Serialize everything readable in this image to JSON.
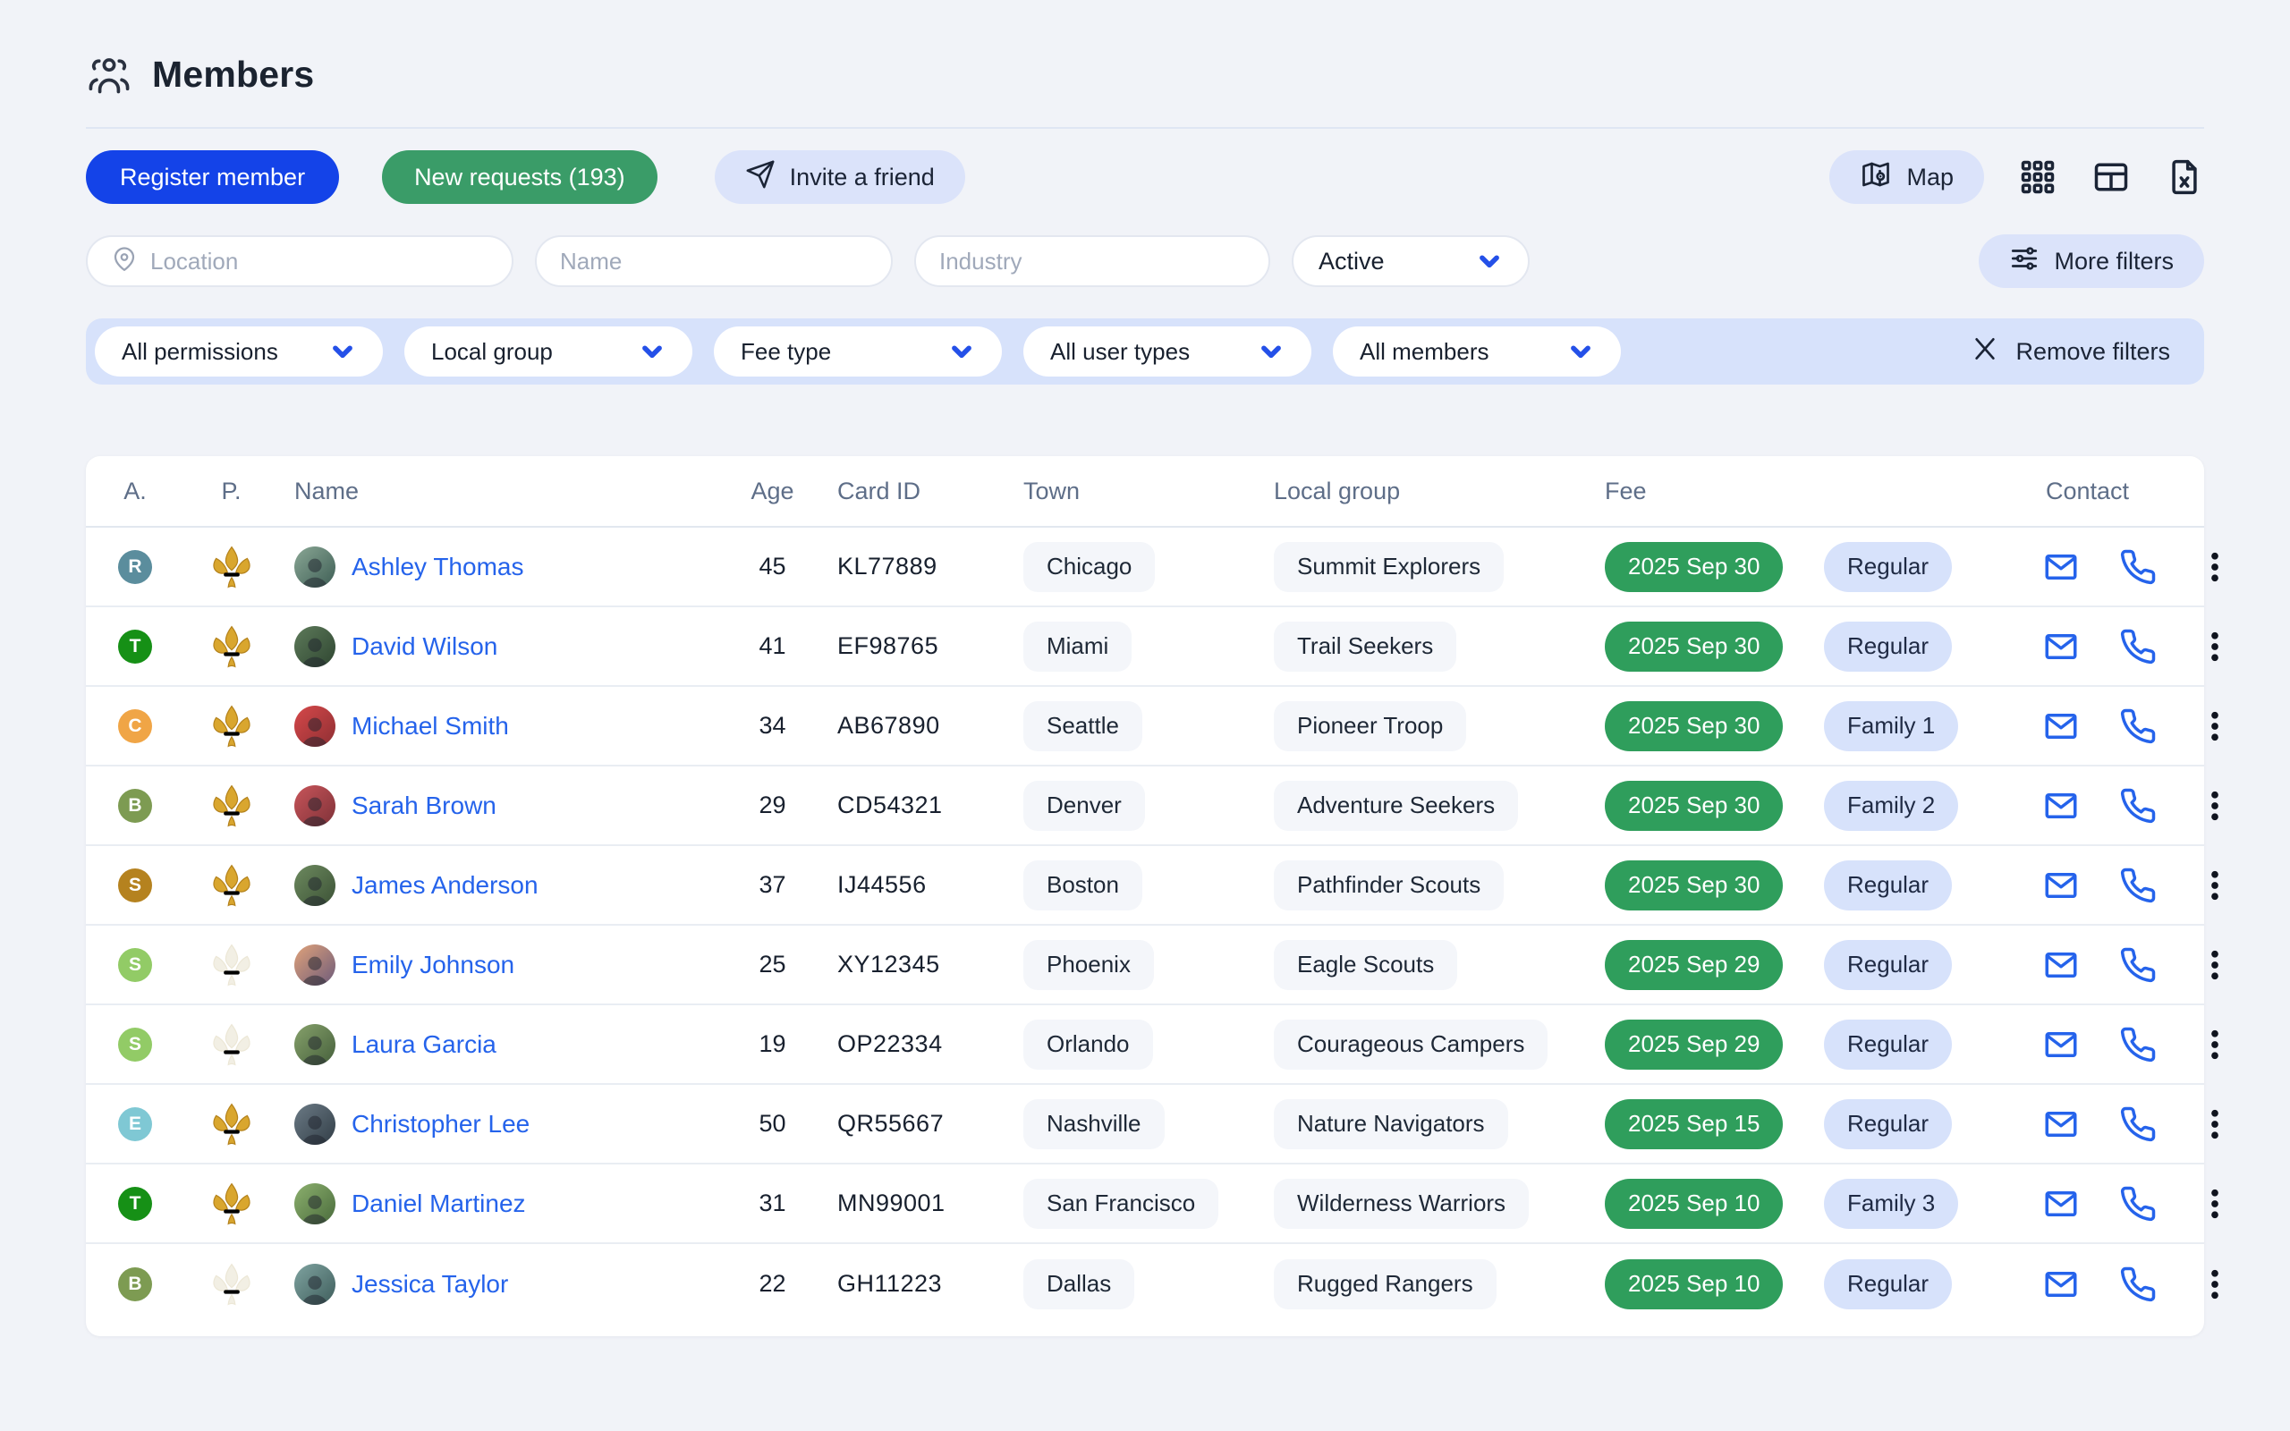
{
  "page": {
    "title": "Members"
  },
  "toolbar": {
    "register_label": "Register member",
    "new_requests_label": "New requests (193)",
    "invite_label": "Invite a friend",
    "map_label": "Map"
  },
  "filters": {
    "location_placeholder": "Location",
    "name_placeholder": "Name",
    "industry_placeholder": "Industry",
    "status_value": "Active",
    "more_filters_label": "More filters",
    "dropdowns": [
      "All permissions",
      "Local group",
      "Fee type",
      "All user types",
      "All members"
    ],
    "remove_filters_label": "Remove filters"
  },
  "colors": {
    "primary_blue": "#1443e8",
    "green_button": "#3a9c68",
    "fee_green": "#2f9e5c",
    "soft_lavender": "#dbe3fa",
    "band_blue": "#d7e2fb",
    "link_blue": "#2563eb",
    "gold_fleur": "#d9a62e"
  },
  "table": {
    "columns": [
      "A.",
      "P.",
      "Name",
      "Age",
      "Card ID",
      "Town",
      "Local group",
      "Fee",
      "Contact"
    ],
    "rows": [
      {
        "badge": "R",
        "badge_color": "#5b8d9d",
        "fleur": "gold",
        "name": "Ashley Thomas",
        "age": "45",
        "card_id": "KL77889",
        "town": "Chicago",
        "local_group": "Summit Explorers",
        "fee_date": "2025 Sep 30",
        "fee_type": "Regular"
      },
      {
        "badge": "T",
        "badge_color": "#169016",
        "fleur": "gold",
        "name": "David Wilson",
        "age": "41",
        "card_id": "EF98765",
        "town": "Miami",
        "local_group": "Trail Seekers",
        "fee_date": "2025 Sep 30",
        "fee_type": "Regular"
      },
      {
        "badge": "C",
        "badge_color": "#f0a546",
        "fleur": "gold",
        "name": "Michael Smith",
        "age": "34",
        "card_id": "AB67890",
        "town": "Seattle",
        "local_group": "Pioneer Troop",
        "fee_date": "2025 Sep 30",
        "fee_type": "Family 1"
      },
      {
        "badge": "B",
        "badge_color": "#7d9b52",
        "fleur": "gold",
        "name": "Sarah Brown",
        "age": "29",
        "card_id": "CD54321",
        "town": "Denver",
        "local_group": "Adventure Seekers",
        "fee_date": "2025 Sep 30",
        "fee_type": "Family 2"
      },
      {
        "badge": "S",
        "badge_color": "#b5821f",
        "fleur": "gold",
        "name": "James Anderson",
        "age": "37",
        "card_id": "IJ44556",
        "town": "Boston",
        "local_group": "Pathfinder Scouts",
        "fee_date": "2025 Sep 30",
        "fee_type": "Regular"
      },
      {
        "badge": "S",
        "badge_color": "#92cb66",
        "fleur": "faded",
        "name": "Emily Johnson",
        "age": "25",
        "card_id": "XY12345",
        "town": "Phoenix",
        "local_group": "Eagle Scouts",
        "fee_date": "2025 Sep 29",
        "fee_type": "Regular"
      },
      {
        "badge": "S",
        "badge_color": "#92cb66",
        "fleur": "faded",
        "name": "Laura Garcia",
        "age": "19",
        "card_id": "OP22334",
        "town": "Orlando",
        "local_group": "Courageous Campers",
        "fee_date": "2025 Sep 29",
        "fee_type": "Regular"
      },
      {
        "badge": "E",
        "badge_color": "#7fc8d4",
        "fleur": "gold",
        "name": "Christopher Lee",
        "age": "50",
        "card_id": "QR55667",
        "town": "Nashville",
        "local_group": "Nature Navigators",
        "fee_date": "2025 Sep 15",
        "fee_type": "Regular"
      },
      {
        "badge": "T",
        "badge_color": "#169016",
        "fleur": "gold",
        "name": "Daniel Martinez",
        "age": "31",
        "card_id": "MN99001",
        "town": "San Francisco",
        "local_group": "Wilderness Warriors",
        "fee_date": "2025 Sep 10",
        "fee_type": "Family 3"
      },
      {
        "badge": "B",
        "badge_color": "#7d9b52",
        "fleur": "faded",
        "name": "Jessica Taylor",
        "age": "22",
        "card_id": "GH11223",
        "town": "Dallas",
        "local_group": "Rugged Rangers",
        "fee_date": "2025 Sep 10",
        "fee_type": "Regular"
      }
    ]
  }
}
